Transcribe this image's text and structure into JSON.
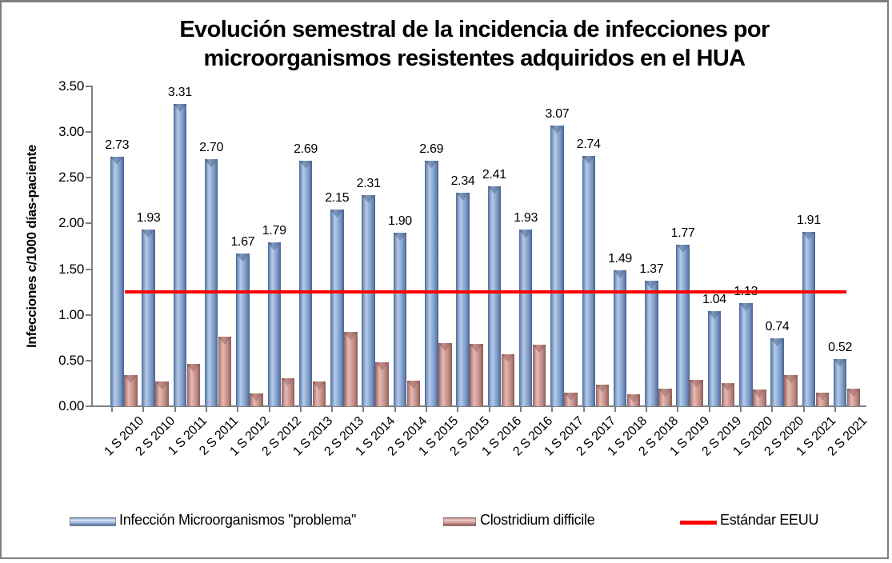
{
  "window": {
    "background": "#ffffff",
    "border_color": "#7f7f7f"
  },
  "chart_data": {
    "type": "bar",
    "title": "Evolución semestral de la incidencia de infecciones por microorganismos resistentes adquiridos en el HUA",
    "title_lines": [
      "Evolución semestral de la incidencia de infecciones por",
      "microorganismos resistentes adquiridos en el HUA"
    ],
    "ylabel": "Infecciones c/1000 días-paciente",
    "xlabel": "",
    "ylim": [
      0,
      3.5
    ],
    "ytick_step": 0.5,
    "ytick_decimals": 2,
    "grid": false,
    "legend_position": "bottom",
    "categories": [
      "1 S 2010",
      "2 S 2010",
      "1 S 2011",
      "2 S 2011",
      "1 S 2012",
      "2 S 2012",
      "1 S 2013",
      "2 S 2013",
      "1 S 2014",
      "2 S 2014",
      "1 S 2015",
      "2 S 2015",
      "1 S 2016",
      "2 S 2016",
      "1 S 2017",
      "2 S 2017",
      "1 S 2018",
      "2 S 2018",
      "1 S 2019",
      "2 S 2019",
      "1 S 2020",
      "2 S 2020",
      "1 S 2021",
      "2 S 2021"
    ],
    "series": [
      {
        "name": "Infección Microorganismos \"problema\"",
        "type": "bar",
        "color": "#84a3cc",
        "data_labels": true,
        "values": [
          2.73,
          1.93,
          3.31,
          2.7,
          1.67,
          1.79,
          2.69,
          2.15,
          2.31,
          1.9,
          2.69,
          2.34,
          2.41,
          1.93,
          3.07,
          2.74,
          1.49,
          1.37,
          1.77,
          1.04,
          1.13,
          0.74,
          1.91,
          0.52
        ]
      },
      {
        "name": "Clostridium difficile",
        "type": "bar",
        "color": "#c48d89",
        "data_labels": false,
        "values": [
          0.34,
          0.27,
          0.46,
          0.76,
          0.14,
          0.31,
          0.27,
          0.81,
          0.48,
          0.28,
          0.69,
          0.68,
          0.57,
          0.67,
          0.15,
          0.24,
          0.13,
          0.19,
          0.29,
          0.25,
          0.18,
          0.34,
          0.15,
          0.19
        ]
      }
    ],
    "reference_line": {
      "name": "Estándar EEUU",
      "value": 1.25,
      "color": "#ff0000"
    }
  }
}
